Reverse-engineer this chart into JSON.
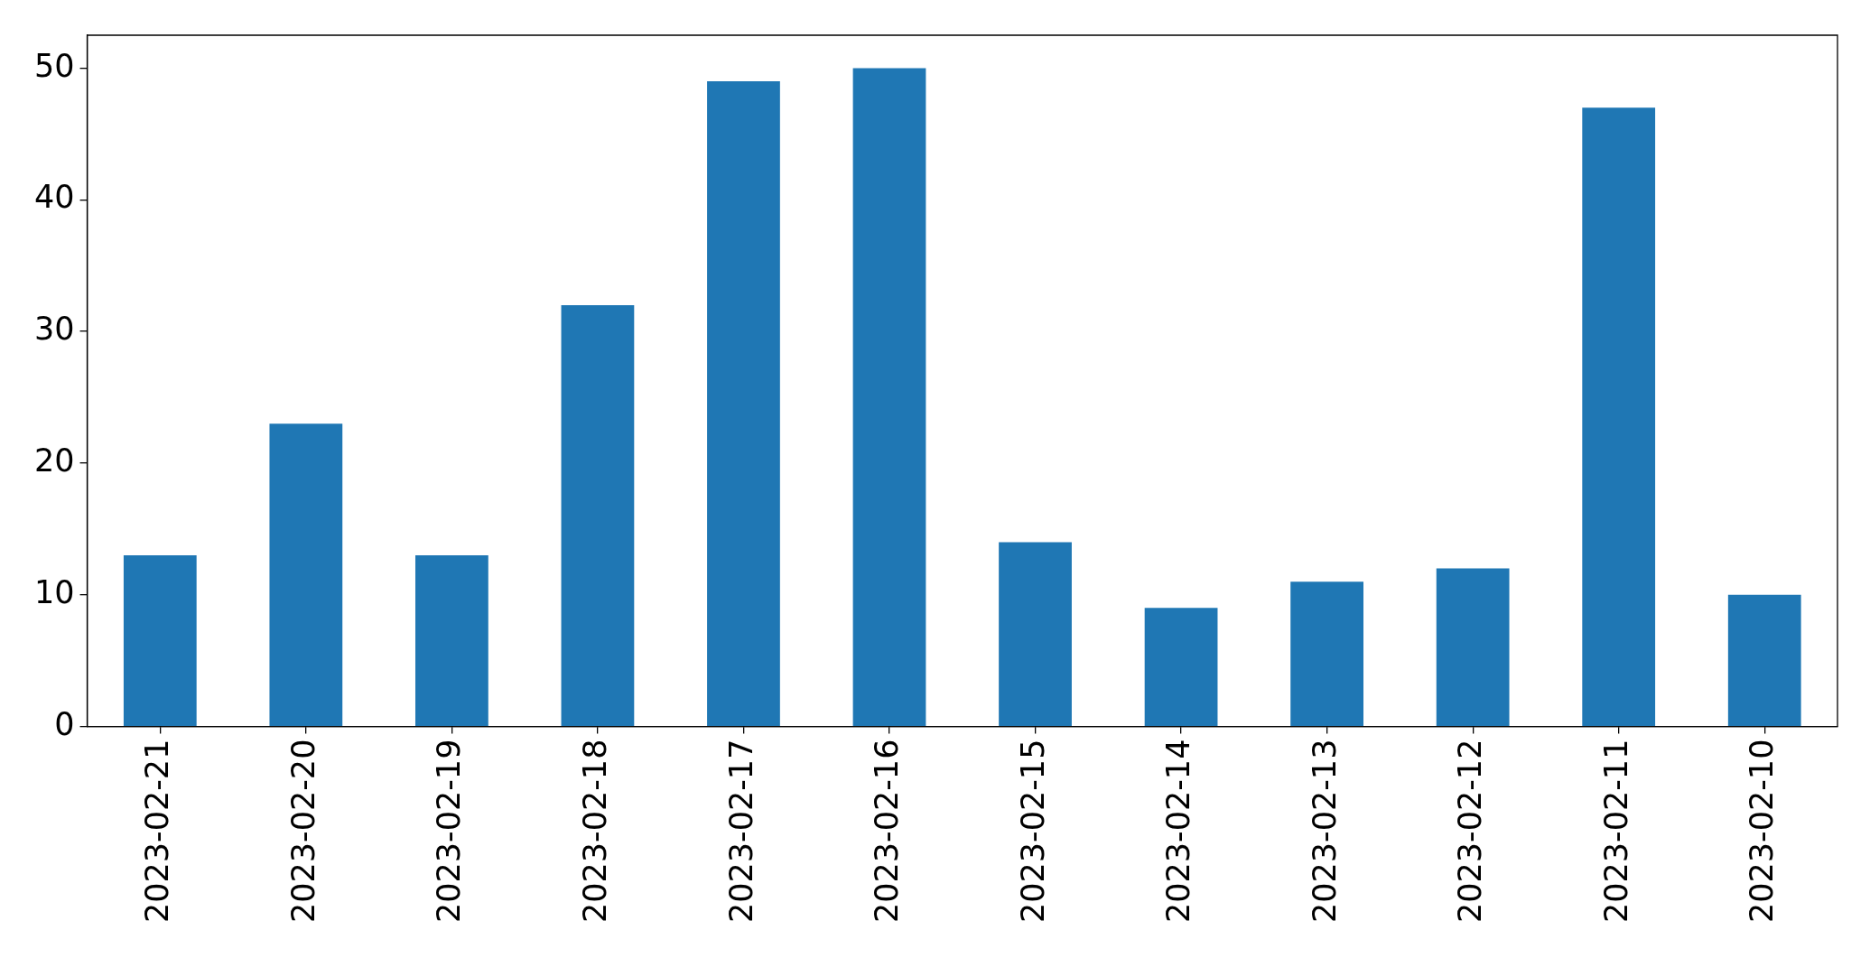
{
  "chart_data": {
    "type": "bar",
    "categories": [
      "2023-02-21",
      "2023-02-20",
      "2023-02-19",
      "2023-02-18",
      "2023-02-17",
      "2023-02-16",
      "2023-02-15",
      "2023-02-14",
      "2023-02-13",
      "2023-02-12",
      "2023-02-11",
      "2023-02-10"
    ],
    "values": [
      13,
      23,
      13,
      32,
      49,
      50,
      14,
      9,
      11,
      12,
      47,
      10
    ],
    "color": "#1f77b4",
    "ylim": [
      0,
      52.5
    ],
    "yticks": [
      0,
      10,
      20,
      30,
      40,
      50
    ]
  }
}
